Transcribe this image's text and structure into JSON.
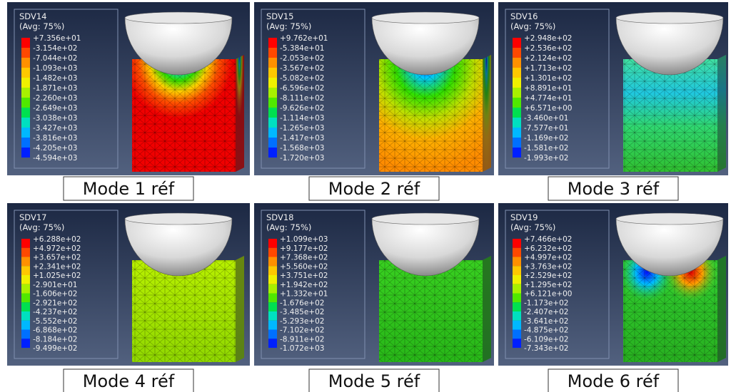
{
  "panels": [
    {
      "variable": "SDV14",
      "averaging": "(Avg: 75%)",
      "levels": [
        "+7.356e+01",
        "-3.154e+02",
        "-7.044e+02",
        "-1.093e+03",
        "-1.482e+03",
        "-1.871e+03",
        "-2.260e+03",
        "-2.649e+03",
        "-3.038e+03",
        "-3.427e+03",
        "-3.816e+03",
        "-4.205e+03",
        "-4.594e+03"
      ],
      "caption": "Mode 1 réf"
    },
    {
      "variable": "SDV15",
      "averaging": "(Avg: 75%)",
      "levels": [
        "+9.762e+01",
        "-5.384e+01",
        "-2.053e+02",
        "-3.567e+02",
        "-5.082e+02",
        "-6.596e+02",
        "-8.111e+02",
        "-9.626e+02",
        "-1.114e+03",
        "-1.265e+03",
        "-1.417e+03",
        "-1.568e+03",
        "-1.720e+03"
      ],
      "caption": "Mode 2 réf"
    },
    {
      "variable": "SDV16",
      "averaging": "(Avg: 75%)",
      "levels": [
        "+2.948e+02",
        "+2.536e+02",
        "+2.124e+02",
        "+1.713e+02",
        "+1.301e+02",
        "+8.891e+01",
        "+4.774e+01",
        "+6.571e+00",
        "-3.460e+01",
        "-7.577e+01",
        "-1.169e+02",
        "-1.581e+02",
        "-1.993e+02"
      ],
      "caption": "Mode 3 réf"
    },
    {
      "variable": "SDV17",
      "averaging": "(Avg: 75%)",
      "levels": [
        "+6.288e+02",
        "+4.972e+02",
        "+3.657e+02",
        "+2.341e+02",
        "+1.025e+02",
        "-2.901e+01",
        "-1.606e+02",
        "-2.921e+02",
        "-4.237e+02",
        "-5.552e+02",
        "-6.868e+02",
        "-8.184e+02",
        "-9.499e+02"
      ],
      "caption": "Mode 4 réf"
    },
    {
      "variable": "SDV18",
      "averaging": "(Avg: 75%)",
      "levels": [
        "+1.099e+03",
        "+9.177e+02",
        "+7.368e+02",
        "+5.560e+02",
        "+3.751e+02",
        "+1.942e+02",
        "+1.332e+01",
        "-1.676e+02",
        "-3.485e+02",
        "-5.293e+02",
        "-7.102e+02",
        "-8.911e+02",
        "-1.072e+03"
      ],
      "caption": "Mode 5 réf"
    },
    {
      "variable": "SDV19",
      "averaging": "(Avg: 75%)",
      "levels": [
        "+7.466e+02",
        "+6.232e+02",
        "+4.997e+02",
        "+3.763e+02",
        "+2.529e+02",
        "+1.295e+02",
        "+6.121e+00",
        "-1.173e+02",
        "-2.407e+02",
        "-3.641e+02",
        "-4.875e+02",
        "-6.109e+02",
        "-7.343e+02"
      ],
      "caption": "Mode 6 réf"
    }
  ]
}
